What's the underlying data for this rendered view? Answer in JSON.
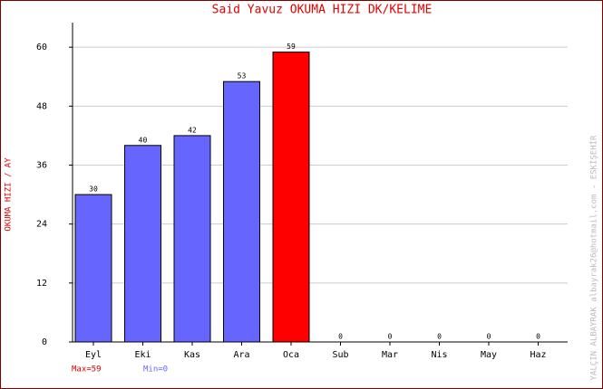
{
  "chart_data": {
    "type": "bar",
    "title": "Said Yavuz    OKUMA HIZI  DK/KELIME",
    "y_label": "OKUMA HIZI / AY",
    "credit": "YALÇIN ALBAYRAK  albayrak26@hotmail.com - ESKİŞEHİR",
    "categories": [
      "Eyl",
      "Eki",
      "Kas",
      "Ara",
      "Oca",
      "Sub",
      "Mar",
      "Nis",
      "May",
      "Haz"
    ],
    "values": [
      30,
      40,
      42,
      53,
      59,
      0,
      0,
      0,
      0,
      0
    ],
    "colors": [
      "#6666ff",
      "#6666ff",
      "#6666ff",
      "#6666ff",
      "#ff0000",
      "#6666ff",
      "#6666ff",
      "#6666ff",
      "#6666ff",
      "#6666ff"
    ],
    "ylim": [
      0,
      65
    ],
    "yticks": [
      0,
      12,
      24,
      36,
      48,
      60
    ],
    "grid": true,
    "max_label": "Max=59",
    "min_label": "Min=0"
  }
}
